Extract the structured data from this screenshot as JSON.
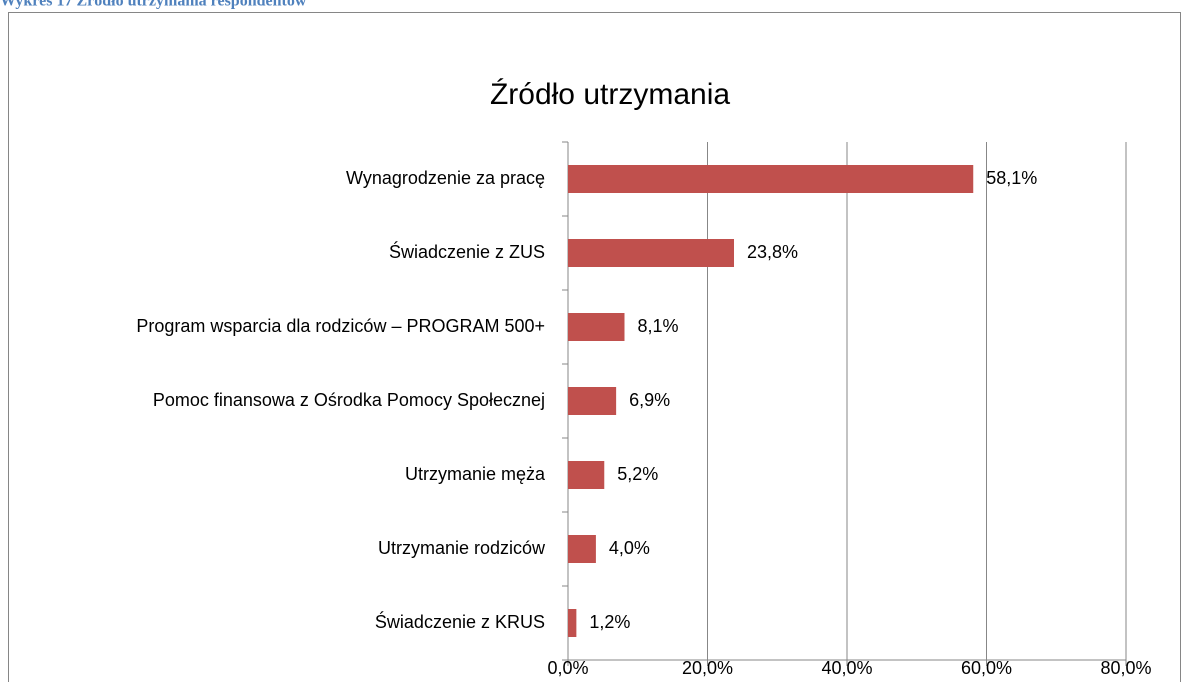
{
  "caption": "Wykres 17 Źródło utrzymania respondentów",
  "chart_data": {
    "type": "bar",
    "orientation": "horizontal",
    "title": "Źródło utrzymania",
    "categories": [
      "Wynagrodzenie za pracę",
      "Świadczenie z ZUS",
      "Program wsparcia dla rodziców – PROGRAM 500+",
      "Pomoc finansowa z Ośrodka Pomocy Społecznej",
      "Utrzymanie męża",
      "Utrzymanie rodziców",
      "Świadczenie z KRUS"
    ],
    "values": [
      58.1,
      23.8,
      8.1,
      6.9,
      5.2,
      4.0,
      1.2
    ],
    "value_labels": [
      "58,1%",
      "23,8%",
      "8,1%",
      "6,9%",
      "5,2%",
      "4,0%",
      "1,2%"
    ],
    "color": "#c0504d",
    "xlim": [
      0,
      80
    ],
    "xticks": [
      {
        "value": 0,
        "label": "0,0%"
      },
      {
        "value": 20,
        "label": "20,0%"
      },
      {
        "value": 40,
        "label": "40,0%"
      },
      {
        "value": 60,
        "label": "60,0%"
      },
      {
        "value": 80,
        "label": "80,0%"
      }
    ],
    "grid": true
  }
}
